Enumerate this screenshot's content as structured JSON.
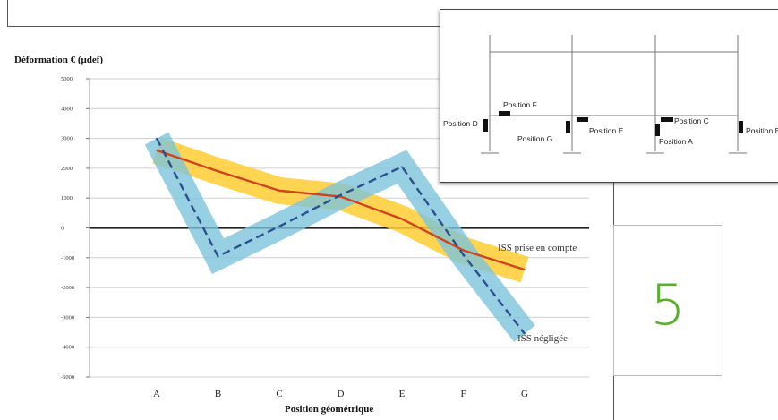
{
  "page_number": "5",
  "colors": {
    "orange_line": "#d0431f",
    "orange_band": "#ffcc33",
    "blue_line": "#2e4f8e",
    "blue_band": "#7dc4dc",
    "grid": "#cfcfcf",
    "zero_line": "#222222",
    "page_number": "#58b02e"
  },
  "chart_data": {
    "type": "line",
    "ylabel": "Déformation € (μdef)",
    "xlabel": "Position géométrique",
    "categories": [
      "A",
      "B",
      "C",
      "D",
      "E",
      "F",
      "G"
    ],
    "ylim": [
      -5000,
      5000
    ],
    "yticks": [
      5000,
      4000,
      3000,
      2000,
      1000,
      0,
      -1000,
      -2000,
      -3000,
      -4000,
      -5000
    ],
    "grid": true,
    "series": [
      {
        "name": "ISS prise en compte",
        "style": "solid",
        "values": [
          2600,
          1900,
          1250,
          1050,
          300,
          -750,
          -1400
        ],
        "band_halfwidth": 450
      },
      {
        "name": "ISS négligée",
        "style": "dashed",
        "values": [
          3000,
          -950,
          50,
          1100,
          2050,
          -900,
          -3550
        ],
        "band_halfwidth": 450
      }
    ],
    "annotations": [
      "ISS prise en compte",
      "ISS négligée"
    ]
  },
  "inset": {
    "labels": {
      "pos_f": "Position F",
      "pos_d": "Position D",
      "pos_e": "Position E",
      "pos_c": "Position C",
      "pos_g": "Position G",
      "pos_a": "Position A",
      "pos_b": "Position B"
    }
  }
}
